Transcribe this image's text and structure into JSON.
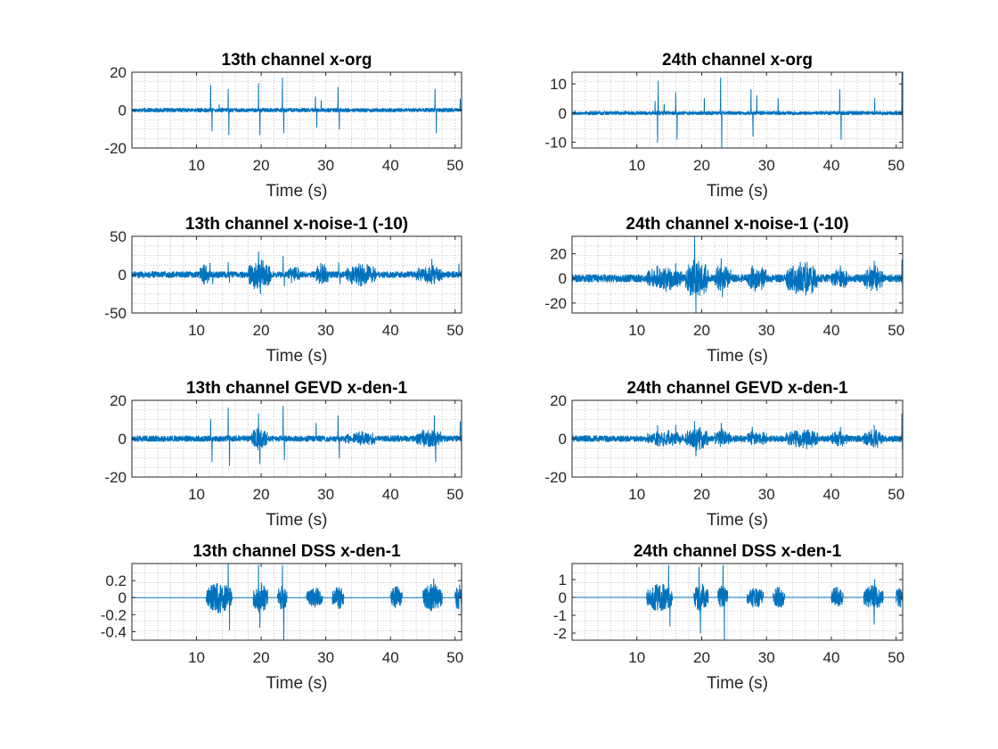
{
  "style": {
    "line_color": "#0072BD",
    "axis_color": "#262626",
    "grid": true,
    "grid_minor": true
  },
  "chart_data": [
    {
      "type": "line",
      "title": "13th channel x-org",
      "xlabel": "Time (s)",
      "ylabel": "",
      "xlim": [
        0,
        51
      ],
      "ylim": [
        -20,
        20
      ],
      "xticks": [
        10,
        20,
        30,
        40,
        50
      ],
      "xtick_labels": [
        "10",
        "20",
        "30",
        "40",
        "50"
      ],
      "yticks": [
        20,
        0,
        -20
      ],
      "ytick_labels": [
        "20",
        "0",
        "-20"
      ],
      "noise_level": 1.0,
      "events": [
        {
          "t": 12.2,
          "amp": 13
        },
        {
          "t": 12.4,
          "amp": -11
        },
        {
          "t": 13.5,
          "amp": 3
        },
        {
          "t": 14.9,
          "amp": 11
        },
        {
          "t": 15.0,
          "amp": -13
        },
        {
          "t": 19.6,
          "amp": 14
        },
        {
          "t": 19.8,
          "amp": -13
        },
        {
          "t": 23.3,
          "amp": 17
        },
        {
          "t": 23.5,
          "amp": -12
        },
        {
          "t": 28.4,
          "amp": 7
        },
        {
          "t": 28.6,
          "amp": -9
        },
        {
          "t": 29.3,
          "amp": 5
        },
        {
          "t": 31.9,
          "amp": 12
        },
        {
          "t": 32.1,
          "amp": -10
        },
        {
          "t": 46.9,
          "amp": 11
        },
        {
          "t": 47.1,
          "amp": -12
        },
        {
          "t": 50.8,
          "amp": 6
        }
      ],
      "bursts": []
    },
    {
      "type": "line",
      "title": "24th channel x-org",
      "xlabel": "Time (s)",
      "ylabel": "",
      "xlim": [
        0,
        51
      ],
      "ylim": [
        -12,
        14
      ],
      "xticks": [
        10,
        20,
        30,
        40,
        50
      ],
      "xtick_labels": [
        "10",
        "20",
        "30",
        "40",
        "50"
      ],
      "yticks": [
        10,
        0,
        -10
      ],
      "ytick_labels": [
        "10",
        "0",
        "-10"
      ],
      "noise_level": 0.6,
      "events": [
        {
          "t": 12.8,
          "amp": 4
        },
        {
          "t": 13.2,
          "amp": -10
        },
        {
          "t": 13.3,
          "amp": 11
        },
        {
          "t": 14.2,
          "amp": 3
        },
        {
          "t": 16.0,
          "amp": 7
        },
        {
          "t": 16.2,
          "amp": -9
        },
        {
          "t": 20.4,
          "amp": 5
        },
        {
          "t": 22.9,
          "amp": 12
        },
        {
          "t": 23.1,
          "amp": -12
        },
        {
          "t": 27.6,
          "amp": 8
        },
        {
          "t": 27.9,
          "amp": -8
        },
        {
          "t": 28.5,
          "amp": 6
        },
        {
          "t": 31.8,
          "amp": 5
        },
        {
          "t": 41.3,
          "amp": 8
        },
        {
          "t": 41.5,
          "amp": -9
        },
        {
          "t": 46.7,
          "amp": 5
        },
        {
          "t": 50.9,
          "amp": 14
        },
        {
          "t": 51.0,
          "amp": -11
        }
      ],
      "bursts": []
    },
    {
      "type": "line",
      "title": "13th channel x-noise-1 (-10)",
      "xlabel": "Time (s)",
      "ylabel": "",
      "xlim": [
        0,
        51
      ],
      "ylim": [
        -50,
        50
      ],
      "xticks": [
        10,
        20,
        30,
        40,
        50
      ],
      "xtick_labels": [
        "10",
        "20",
        "30",
        "40",
        "50"
      ],
      "yticks": [
        50,
        0,
        -50
      ],
      "ytick_labels": [
        "50",
        "0",
        "-50"
      ],
      "noise_level": 4,
      "events": [
        {
          "t": 12.1,
          "amp": 15
        },
        {
          "t": 12.5,
          "amp": -12
        },
        {
          "t": 14.9,
          "amp": 16
        },
        {
          "t": 15.1,
          "amp": -10
        },
        {
          "t": 19.6,
          "amp": 30
        },
        {
          "t": 19.9,
          "amp": -25
        },
        {
          "t": 23.4,
          "amp": 24
        },
        {
          "t": 23.6,
          "amp": -15
        },
        {
          "t": 28.7,
          "amp": 10
        },
        {
          "t": 32.0,
          "amp": 16
        },
        {
          "t": 32.2,
          "amp": -12
        },
        {
          "t": 46.4,
          "amp": 20
        },
        {
          "t": 46.8,
          "amp": -12
        },
        {
          "t": 50.6,
          "amp": 14
        }
      ],
      "bursts": [
        {
          "start": 10.5,
          "end": 12.0,
          "amp": 10
        },
        {
          "start": 18.0,
          "end": 21.5,
          "amp": 18
        },
        {
          "start": 24.0,
          "end": 26.0,
          "amp": 9
        },
        {
          "start": 28.5,
          "end": 30.5,
          "amp": 12
        },
        {
          "start": 33.0,
          "end": 38.0,
          "amp": 12
        },
        {
          "start": 44.0,
          "end": 48.0,
          "amp": 10
        }
      ]
    },
    {
      "type": "line",
      "title": "24th channel x-noise-1 (-10)",
      "xlabel": "Time (s)",
      "ylabel": "",
      "xlim": [
        0,
        51
      ],
      "ylim": [
        -28,
        34
      ],
      "xticks": [
        10,
        20,
        30,
        40,
        50
      ],
      "xtick_labels": [
        "10",
        "20",
        "30",
        "40",
        "50"
      ],
      "yticks": [
        20,
        0,
        -20
      ],
      "ytick_labels": [
        "20",
        "0",
        "-20"
      ],
      "noise_level": 3,
      "events": [
        {
          "t": 13.2,
          "amp": 10
        },
        {
          "t": 16.0,
          "amp": 12
        },
        {
          "t": 18.9,
          "amp": 34
        },
        {
          "t": 19.1,
          "amp": -28
        },
        {
          "t": 23.0,
          "amp": 16
        },
        {
          "t": 23.2,
          "amp": -15
        },
        {
          "t": 27.8,
          "amp": 10
        },
        {
          "t": 41.4,
          "amp": 10
        },
        {
          "t": 46.6,
          "amp": 14
        },
        {
          "t": 50.9,
          "amp": 15
        },
        {
          "t": 51.0,
          "amp": -14
        }
      ],
      "bursts": [
        {
          "start": 11.5,
          "end": 17.0,
          "amp": 8
        },
        {
          "start": 17.5,
          "end": 21.0,
          "amp": 14
        },
        {
          "start": 22.0,
          "end": 24.5,
          "amp": 9
        },
        {
          "start": 27.0,
          "end": 30.0,
          "amp": 9
        },
        {
          "start": 33.0,
          "end": 38.0,
          "amp": 12
        },
        {
          "start": 40.0,
          "end": 42.5,
          "amp": 8
        },
        {
          "start": 45.0,
          "end": 48.0,
          "amp": 9
        }
      ]
    },
    {
      "type": "line",
      "title": "13th channel GEVD x-den-1",
      "xlabel": "Time (s)",
      "ylabel": "",
      "xlim": [
        0,
        51
      ],
      "ylim": [
        -20,
        20
      ],
      "xticks": [
        10,
        20,
        30,
        40,
        50
      ],
      "xtick_labels": [
        "10",
        "20",
        "30",
        "40",
        "50"
      ],
      "yticks": [
        20,
        0,
        -20
      ],
      "ytick_labels": [
        "20",
        "0",
        "-20"
      ],
      "noise_level": 1.5,
      "events": [
        {
          "t": 12.2,
          "amp": 10
        },
        {
          "t": 12.4,
          "amp": -12
        },
        {
          "t": 14.9,
          "amp": 16
        },
        {
          "t": 15.1,
          "amp": -14
        },
        {
          "t": 19.6,
          "amp": 13
        },
        {
          "t": 19.8,
          "amp": -13
        },
        {
          "t": 23.4,
          "amp": 17
        },
        {
          "t": 23.6,
          "amp": -11
        },
        {
          "t": 28.5,
          "amp": 8
        },
        {
          "t": 31.9,
          "amp": 12
        },
        {
          "t": 32.1,
          "amp": -10
        },
        {
          "t": 46.8,
          "amp": 12
        },
        {
          "t": 47.0,
          "amp": -12
        },
        {
          "t": 50.8,
          "amp": 9
        },
        {
          "t": 51.0,
          "amp": -5
        }
      ],
      "bursts": [
        {
          "start": 18.5,
          "end": 21.0,
          "amp": 5
        },
        {
          "start": 33.0,
          "end": 38.0,
          "amp": 3
        },
        {
          "start": 44.0,
          "end": 48.0,
          "amp": 4
        }
      ]
    },
    {
      "type": "line",
      "title": "24th channel GEVD x-den-1",
      "xlabel": "Time (s)",
      "ylabel": "",
      "xlim": [
        0,
        51
      ],
      "ylim": [
        -20,
        20
      ],
      "xticks": [
        10,
        20,
        30,
        40,
        50
      ],
      "xtick_labels": [
        "10",
        "20",
        "30",
        "40",
        "50"
      ],
      "yticks": [
        20,
        0,
        -20
      ],
      "ytick_labels": [
        "20",
        "0",
        "-20"
      ],
      "noise_level": 1.6,
      "events": [
        {
          "t": 13.2,
          "amp": 7
        },
        {
          "t": 16.0,
          "amp": 7
        },
        {
          "t": 18.9,
          "amp": 9
        },
        {
          "t": 19.1,
          "amp": -9
        },
        {
          "t": 23.0,
          "amp": 8
        },
        {
          "t": 27.8,
          "amp": 6
        },
        {
          "t": 41.4,
          "amp": 6
        },
        {
          "t": 46.6,
          "amp": 7
        },
        {
          "t": 50.9,
          "amp": 13
        },
        {
          "t": 51.0,
          "amp": -11
        }
      ],
      "bursts": [
        {
          "start": 11.5,
          "end": 17.0,
          "amp": 3
        },
        {
          "start": 17.5,
          "end": 21.0,
          "amp": 5
        },
        {
          "start": 22.0,
          "end": 24.5,
          "amp": 4
        },
        {
          "start": 27.0,
          "end": 30.0,
          "amp": 3
        },
        {
          "start": 33.0,
          "end": 38.0,
          "amp": 4
        },
        {
          "start": 40.0,
          "end": 42.5,
          "amp": 3
        },
        {
          "start": 45.0,
          "end": 48.0,
          "amp": 4
        }
      ]
    },
    {
      "type": "line",
      "title": "13th channel DSS x-den-1",
      "xlabel": "Time (s)",
      "ylabel": "",
      "xlim": [
        0,
        51
      ],
      "ylim": [
        -0.5,
        0.4
      ],
      "xticks": [
        10,
        20,
        30,
        40,
        50
      ],
      "xtick_labels": [
        "10",
        "20",
        "30",
        "40",
        "50"
      ],
      "yticks": [
        0.2,
        0,
        -0.2,
        -0.4
      ],
      "ytick_labels": [
        "0.2",
        "0",
        "-0.2",
        "-0.4"
      ],
      "noise_level": 0.0,
      "events": [
        {
          "t": 14.9,
          "amp": 0.4
        },
        {
          "t": 15.1,
          "amp": -0.38
        },
        {
          "t": 19.6,
          "amp": 0.38
        },
        {
          "t": 19.8,
          "amp": -0.35
        },
        {
          "t": 23.3,
          "amp": 0.38
        },
        {
          "t": 23.5,
          "amp": -0.5
        },
        {
          "t": 46.7,
          "amp": 0.22
        },
        {
          "t": 50.7,
          "amp": 0.15
        },
        {
          "t": 51.0,
          "amp": -0.25
        }
      ],
      "bursts": [
        {
          "start": 11.5,
          "end": 15.5,
          "amp": 0.18
        },
        {
          "start": 18.8,
          "end": 21.0,
          "amp": 0.18
        },
        {
          "start": 22.5,
          "end": 24.0,
          "amp": 0.15
        },
        {
          "start": 27.0,
          "end": 29.5,
          "amp": 0.12
        },
        {
          "start": 31.0,
          "end": 32.8,
          "amp": 0.14
        },
        {
          "start": 40.0,
          "end": 41.8,
          "amp": 0.13
        },
        {
          "start": 45.0,
          "end": 48.0,
          "amp": 0.16
        },
        {
          "start": 50.0,
          "end": 51.0,
          "amp": 0.14
        }
      ]
    },
    {
      "type": "line",
      "title": "24th channel DSS x-den-1",
      "xlabel": "Time (s)",
      "ylabel": "",
      "xlim": [
        0,
        51
      ],
      "ylim": [
        -2.4,
        1.9
      ],
      "xticks": [
        10,
        20,
        30,
        40,
        50
      ],
      "xtick_labels": [
        "10",
        "20",
        "30",
        "40",
        "50"
      ],
      "yticks": [
        1,
        0,
        -1,
        -2
      ],
      "ytick_labels": [
        "1",
        "0",
        "-1",
        "-2"
      ],
      "noise_level": 0.0,
      "events": [
        {
          "t": 14.9,
          "amp": 1.8
        },
        {
          "t": 15.1,
          "amp": -1.6
        },
        {
          "t": 19.6,
          "amp": 1.7
        },
        {
          "t": 19.8,
          "amp": -2.0
        },
        {
          "t": 23.3,
          "amp": 1.8
        },
        {
          "t": 23.5,
          "amp": -2.4
        },
        {
          "t": 46.6,
          "amp": -1.5
        },
        {
          "t": 46.7,
          "amp": 1.0
        }
      ],
      "bursts": [
        {
          "start": 11.5,
          "end": 15.5,
          "amp": 0.8
        },
        {
          "start": 18.8,
          "end": 21.0,
          "amp": 0.8
        },
        {
          "start": 22.5,
          "end": 24.0,
          "amp": 0.7
        },
        {
          "start": 27.0,
          "end": 29.5,
          "amp": 0.6
        },
        {
          "start": 31.0,
          "end": 32.8,
          "amp": 0.6
        },
        {
          "start": 40.0,
          "end": 41.8,
          "amp": 0.6
        },
        {
          "start": 45.0,
          "end": 48.0,
          "amp": 0.7
        },
        {
          "start": 50.0,
          "end": 51.0,
          "amp": 0.6
        }
      ]
    }
  ]
}
